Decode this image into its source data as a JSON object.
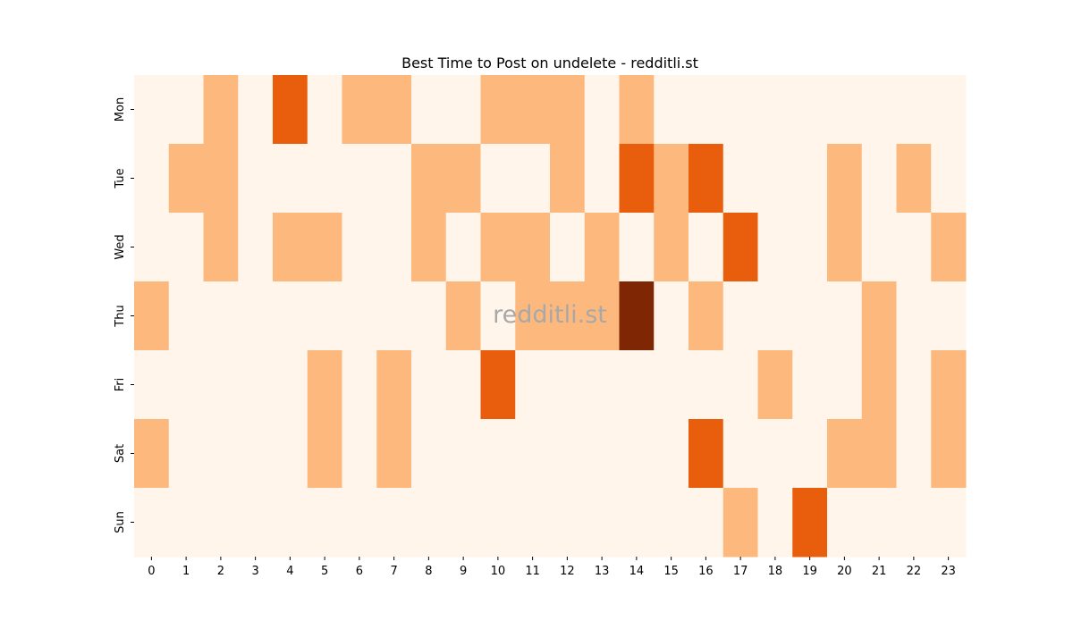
{
  "chart_data": {
    "type": "heatmap",
    "title": "Best Time to Post on undelete - redditli.st",
    "xlabel": "",
    "ylabel": "",
    "x_categories": [
      "0",
      "1",
      "2",
      "3",
      "4",
      "5",
      "6",
      "7",
      "8",
      "9",
      "10",
      "11",
      "12",
      "13",
      "14",
      "15",
      "16",
      "17",
      "18",
      "19",
      "20",
      "21",
      "22",
      "23"
    ],
    "y_categories": [
      "Mon",
      "Tue",
      "Wed",
      "Thu",
      "Fri",
      "Sat",
      "Sun"
    ],
    "values": [
      [
        0,
        0,
        1,
        0,
        2,
        0,
        1,
        1,
        0,
        0,
        1,
        1,
        1,
        0,
        1,
        0,
        0,
        0,
        0,
        0,
        0,
        0,
        0,
        0
      ],
      [
        0,
        1,
        1,
        0,
        0,
        0,
        0,
        0,
        1,
        1,
        0,
        0,
        1,
        0,
        2,
        1,
        2,
        0,
        0,
        0,
        1,
        0,
        1,
        0
      ],
      [
        0,
        0,
        1,
        0,
        1,
        1,
        0,
        0,
        1,
        0,
        1,
        1,
        0,
        1,
        0,
        1,
        0,
        2,
        0,
        0,
        1,
        0,
        0,
        1
      ],
      [
        1,
        0,
        0,
        0,
        0,
        0,
        0,
        0,
        0,
        1,
        0,
        1,
        1,
        1,
        3,
        0,
        1,
        0,
        0,
        0,
        0,
        1,
        0,
        0
      ],
      [
        0,
        0,
        0,
        0,
        0,
        1,
        0,
        1,
        0,
        0,
        2,
        0,
        0,
        0,
        0,
        0,
        0,
        0,
        1,
        0,
        0,
        1,
        0,
        1
      ],
      [
        1,
        0,
        0,
        0,
        0,
        1,
        0,
        1,
        0,
        0,
        0,
        0,
        0,
        0,
        0,
        0,
        2,
        0,
        0,
        0,
        1,
        1,
        0,
        1
      ],
      [
        0,
        0,
        0,
        0,
        0,
        0,
        0,
        0,
        0,
        0,
        0,
        0,
        0,
        0,
        0,
        0,
        0,
        1,
        0,
        2,
        0,
        0,
        0,
        0
      ]
    ],
    "colors": {
      "levels": [
        "#fff5eb",
        "#fdb97d",
        "#e95e0d",
        "#7f2704"
      ],
      "text": "#000000",
      "watermark": "#a8a8a8"
    },
    "colorbar": false,
    "grid": false,
    "watermark": "redditli.st"
  }
}
